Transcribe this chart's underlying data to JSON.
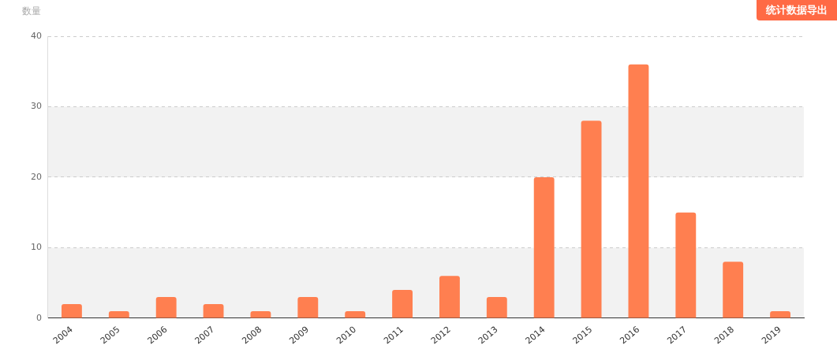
{
  "chart_data": {
    "type": "bar",
    "ylabel": "数量",
    "annotations": [
      "统计数据导出"
    ],
    "categories": [
      "2004",
      "2005",
      "2006",
      "2007",
      "2008",
      "2009",
      "2010",
      "2011",
      "2012",
      "2013",
      "2014",
      "2015",
      "2016",
      "2017",
      "2018",
      "2019"
    ],
    "values": [
      2,
      1,
      3,
      2,
      1,
      3,
      1,
      4,
      6,
      3,
      20,
      28,
      36,
      15,
      8,
      1
    ],
    "color": "#ff7f50",
    "ylim": [
      0,
      40
    ],
    "yticks": [
      0,
      10,
      20,
      30,
      40
    ],
    "grid": "y",
    "legend": false
  }
}
